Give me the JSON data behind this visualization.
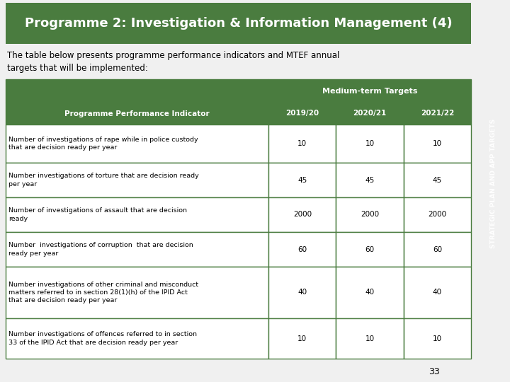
{
  "title": "Programme 2: Investigation & Information Management (4)",
  "title_bg": "#4a7c3f",
  "title_color": "#ffffff",
  "subtitle_line1": "The table below presents programme performance indicators and MTEF annual",
  "subtitle_line2": "targets that will be implemented:",
  "header_col": "Programme Performance Indicator",
  "medium_term_label": "Medium-term Targets",
  "year_headers": [
    "2019/20",
    "2020/21",
    "2021/22"
  ],
  "header_bg": "#4a7c3f",
  "header_color": "#ffffff",
  "rows": [
    {
      "indicator": "Number of investigations of rape while in police custody\nthat are decision ready per year",
      "values": [
        "10",
        "10",
        "10"
      ]
    },
    {
      "indicator": "Number investigations of torture that are decision ready\nper year",
      "values": [
        "45",
        "45",
        "45"
      ]
    },
    {
      "indicator": "Number of investigations of assault that are decision\nready",
      "values": [
        "2000",
        "2000",
        "2000"
      ]
    },
    {
      "indicator": "Number  investigations of corruption  that are decision\nready per year",
      "values": [
        "60",
        "60",
        "60"
      ]
    },
    {
      "indicator": "Number investigations of other criminal and misconduct\nmatters referred to in section 28(1)(h) of the IPID Act\nthat are decision ready per year",
      "values": [
        "40",
        "40",
        "40"
      ]
    },
    {
      "indicator": "Number investigations of offences referred to in section\n33 of the IPID Act that are decision ready per year",
      "values": [
        "10",
        "10",
        "10"
      ]
    }
  ],
  "side_label": "STRATEGIC PLAN AND APP TARGETS",
  "side_bg": "#4a7c3f",
  "side_color": "#ffffff",
  "page_number": "33",
  "bg_color": "#f0f0f0",
  "table_border_color": "#4a7c3f",
  "text_color": "#000000",
  "fig_w": 7.2,
  "fig_h": 5.4,
  "dpi": 100
}
